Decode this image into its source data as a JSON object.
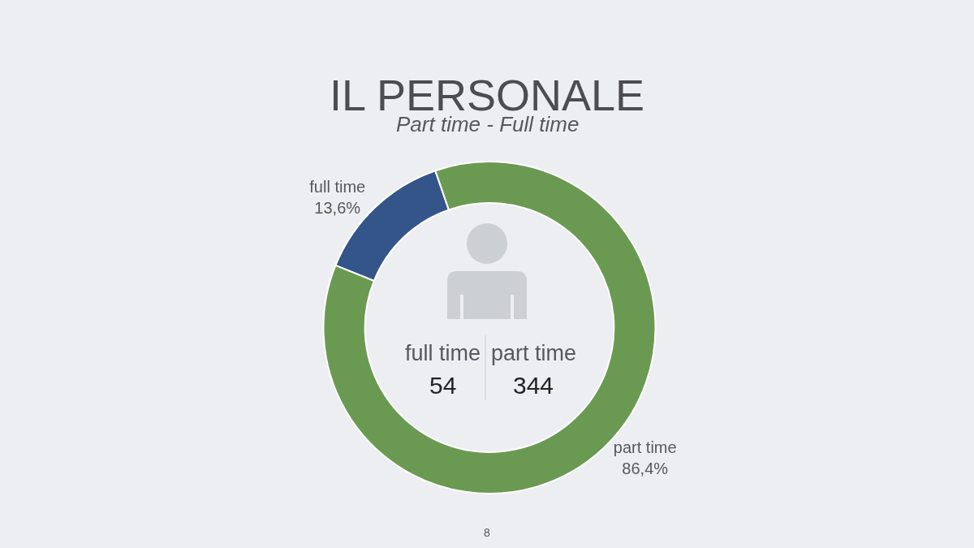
{
  "chart_data": {
    "type": "donut",
    "title": "IL PERSONALE",
    "subtitle": "Part time - Full time",
    "categories": [
      "full time",
      "part time"
    ],
    "values": [
      13.6,
      86.4
    ],
    "colors": [
      "#34558a",
      "#6a9a51"
    ],
    "value_labels": [
      "13,6%",
      "86,4%"
    ],
    "annotations": [
      "full time",
      "part time",
      "54",
      "344",
      "8"
    ]
  }
}
